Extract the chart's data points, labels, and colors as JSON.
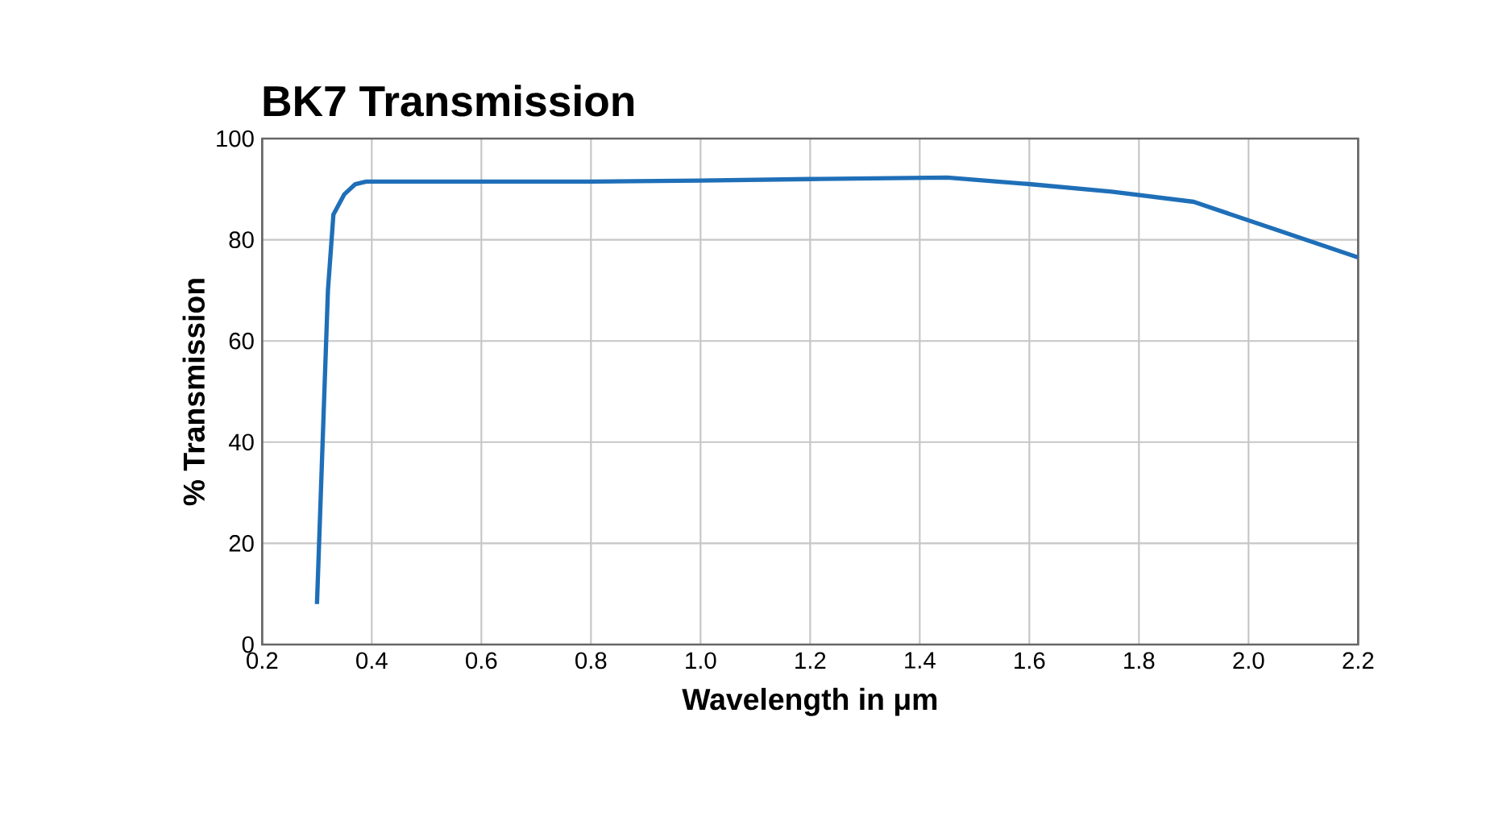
{
  "chart_data": {
    "type": "line",
    "title": "BK7 Transmission",
    "xlabel": "Wavelength in μm",
    "ylabel": "% Transmission",
    "x": [
      0.3,
      0.32,
      0.33,
      0.35,
      0.37,
      0.39,
      0.6,
      0.8,
      1.0,
      1.2,
      1.45,
      1.6,
      1.75,
      1.9,
      2.05,
      2.2
    ],
    "series": [
      {
        "color": "#1f6fb8",
        "values": [
          8,
          70,
          85,
          89,
          91,
          91.5,
          91.5,
          91.5,
          91.7,
          92,
          92.3,
          91,
          89.5,
          87.5,
          82,
          76.5
        ]
      }
    ],
    "xlim": [
      0.2,
      2.2
    ],
    "xticks": [
      0.2,
      0.4,
      0.6,
      0.8,
      {
        "value": 1,
        "label": "1.0"
      },
      1.2,
      1.4,
      1.6,
      1.8,
      {
        "value": 2,
        "label": "2.0"
      },
      2.2
    ],
    "ylim": [
      0,
      100
    ],
    "yticks": [
      0,
      20,
      40,
      60,
      80,
      100
    ],
    "grid": true,
    "marker": "none",
    "line_style": "solid"
  }
}
